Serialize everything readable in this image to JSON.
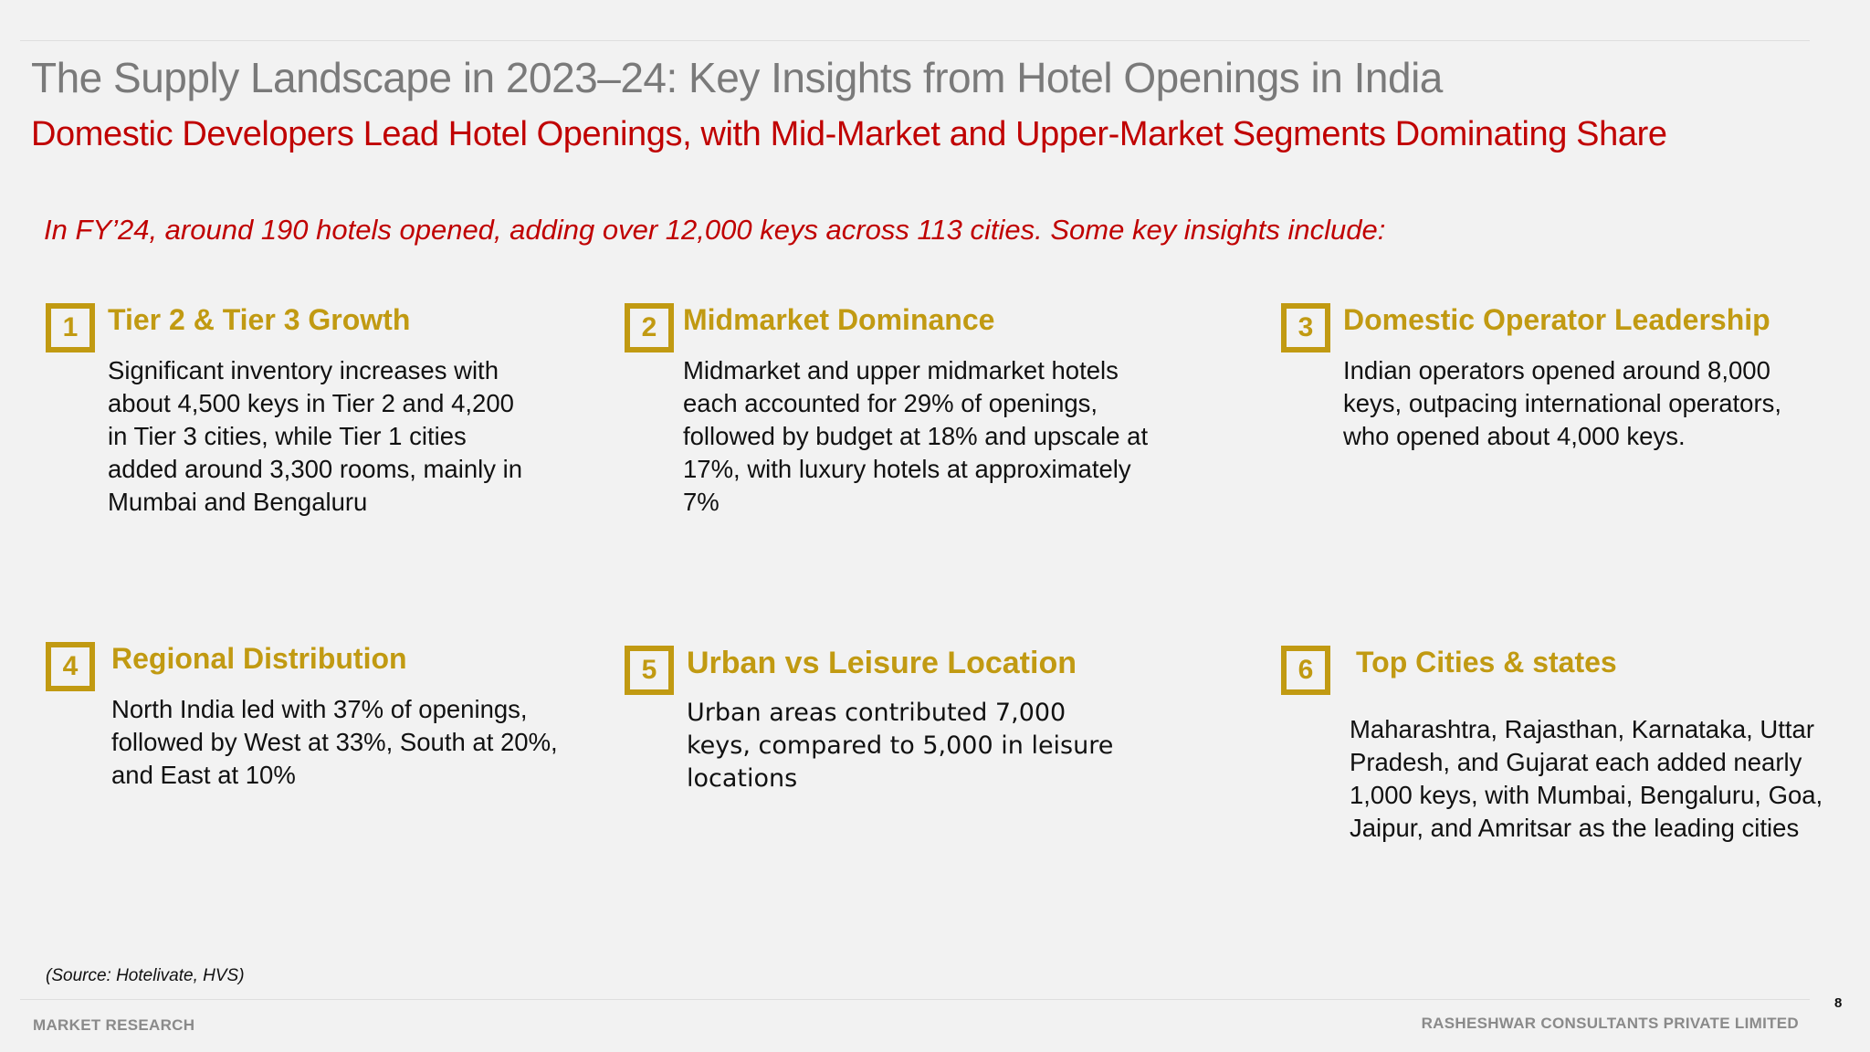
{
  "title": "The Supply Landscape in 2023–24: Key Insights from Hotel Openings in India",
  "subtitle": "Domestic Developers Lead Hotel Openings, with Mid-Market and Upper-Market Segments Dominating Share",
  "intro": "In FY’24, around 190 hotels opened, adding over 12,000 keys across 113 cities. Some key insights include:",
  "colors": {
    "accent_gold": "#c19a12",
    "title_gray": "#7a7a7a",
    "highlight_red": "#c00000",
    "background": "#f2f2f2"
  },
  "insights": [
    {
      "number": "1",
      "title": "Tier 2 & Tier 3 Growth",
      "body": "Significant inventory increases with about 4,500 keys in Tier 2 and 4,200 in Tier 3 cities, while Tier 1 cities added around 3,300 rooms, mainly in Mumbai and Bengaluru"
    },
    {
      "number": "2",
      "title": "Midmarket Dominance",
      "body": "Midmarket and upper midmarket hotels each accounted for 29% of openings, followed by budget at 18% and upscale at 17%, with luxury hotels at approximately 7%"
    },
    {
      "number": "3",
      "title": "Domestic Operator Leadership",
      "body": "Indian operators opened around 8,000 keys, outpacing international operators, who opened about 4,000 keys."
    },
    {
      "number": "4",
      "title": "Regional Distribution",
      "body": "North India led with 37% of openings, followed by West at 33%, South at 20%, and East at 10%"
    },
    {
      "number": "5",
      "title": "Urban vs Leisure Location",
      "body": "Urban areas contributed 7,000 keys, compared to 5,000 in leisure locations"
    },
    {
      "number": "6",
      "title": "Top Cities & states",
      "body": "Maharashtra, Rajasthan, Karnataka, Uttar Pradesh, and Gujarat each added nearly 1,000 keys, with Mumbai, Bengaluru, Goa, Jaipur, and Amritsar as the leading cities"
    }
  ],
  "source": "(Source: Hotelivate, HVS)",
  "footer": {
    "left": "MARKET RESEARCH",
    "right": "RASHESHWAR CONSULTANTS PRIVATE LIMITED",
    "page_number": "8"
  }
}
